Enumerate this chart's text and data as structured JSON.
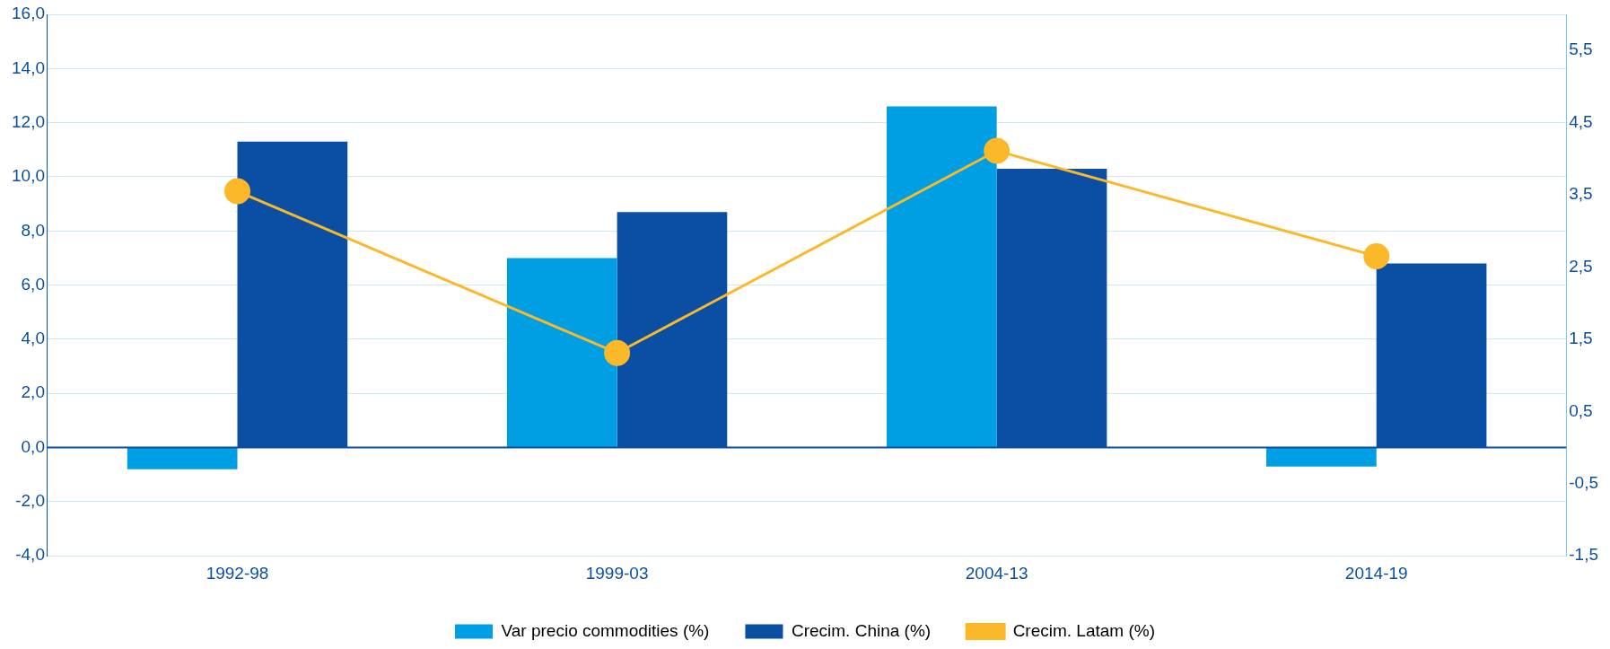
{
  "chart_data": {
    "type": "bar",
    "categories": [
      "1992-98",
      "1999-03",
      "2004-13",
      "2014-19"
    ],
    "series": [
      {
        "name": "Var precio commodities (%)",
        "color": "#009fe3",
        "values": [
          -0.8,
          7.0,
          12.6,
          -0.7
        ]
      },
      {
        "name": "Crecim. China (%)",
        "color": "#0a4fa3",
        "values": [
          11.3,
          8.7,
          10.3,
          6.8
        ]
      },
      {
        "name": "Crecim. Latam (%)",
        "type": "line",
        "axis": "y2",
        "color": "#fbb829",
        "values": [
          3.55,
          1.31,
          4.11,
          2.65
        ]
      }
    ],
    "ylim": [
      -4,
      16
    ],
    "yticks": [
      {
        "value": -4,
        "label": "-4,0"
      },
      {
        "value": -2,
        "label": "-2,0"
      },
      {
        "value": 0,
        "label": "0,0"
      },
      {
        "value": 2,
        "label": "2,0"
      },
      {
        "value": 4,
        "label": "4,0"
      },
      {
        "value": 6,
        "label": "6,0"
      },
      {
        "value": 8,
        "label": "8,0"
      },
      {
        "value": 10,
        "label": "10,0"
      },
      {
        "value": 12,
        "label": "12,0"
      },
      {
        "value": 14,
        "label": "14,0"
      },
      {
        "value": 16,
        "label": "16,0"
      }
    ],
    "y2lim": [
      -1.5,
      6
    ],
    "y2ticks": [
      {
        "value": -1.5,
        "label": "-1,5"
      },
      {
        "value": -0.5,
        "label": "-0,5"
      },
      {
        "value": 0.5,
        "label": "0,5"
      },
      {
        "value": 1.5,
        "label": "1,5"
      },
      {
        "value": 2.5,
        "label": "2,5"
      },
      {
        "value": 3.5,
        "label": "3,5"
      },
      {
        "value": 4.5,
        "label": "4,5"
      },
      {
        "value": 5.5,
        "label": "5,5"
      }
    ],
    "ref_lines": [
      {
        "axis": "y",
        "value": 0,
        "color": "#0a4fa3"
      }
    ],
    "grid": "y",
    "legend": "bottom",
    "marker": "circle"
  }
}
